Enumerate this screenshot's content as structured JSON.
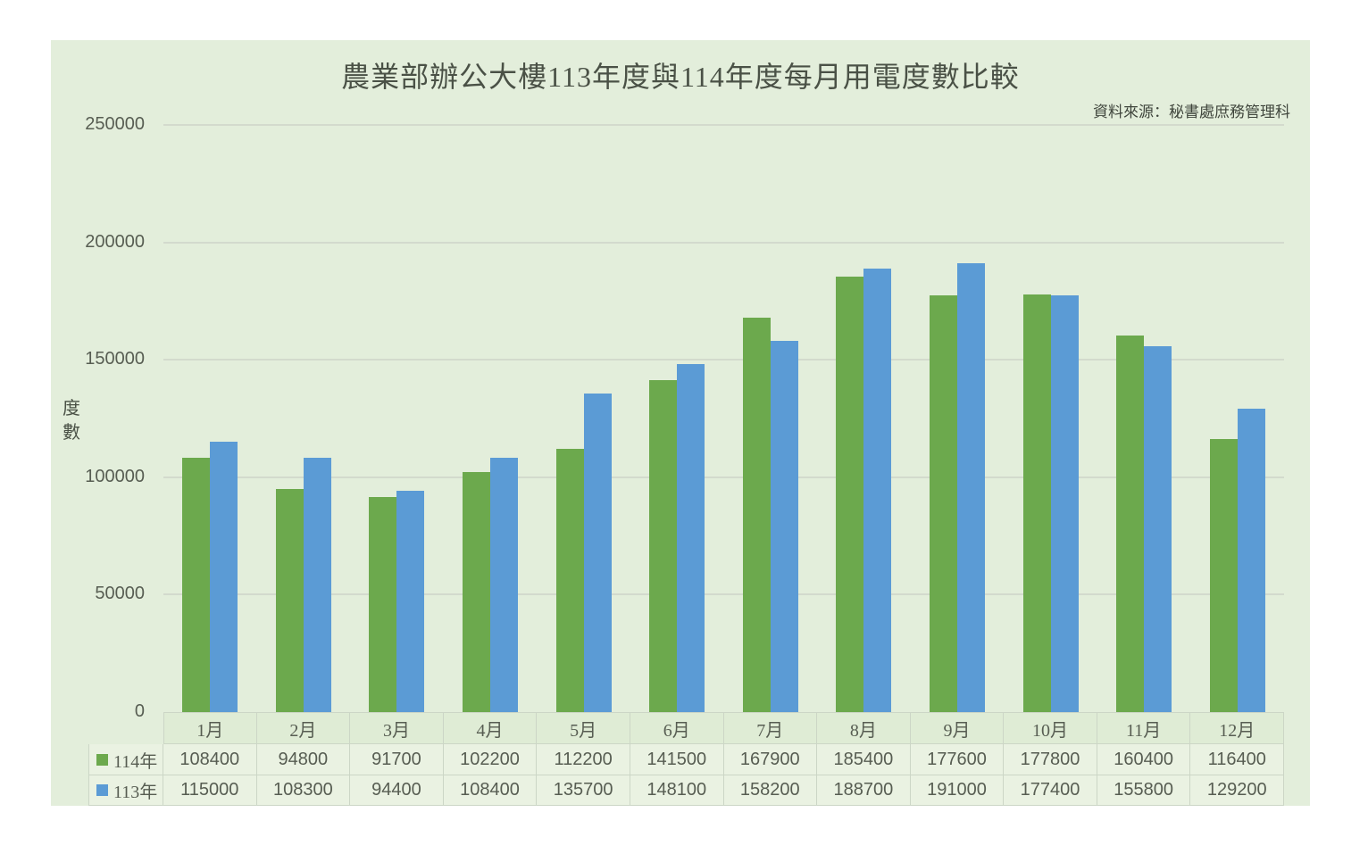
{
  "title": "農業部辦公大樓113年度與114年度每月用電度數比較",
  "source_note": "資料來源：秘書處庶務管理科",
  "y_axis_label": "度數",
  "colors": {
    "panel_background": "#e3eedb",
    "series_114": "#6ca94d",
    "series_113": "#5b9bd5",
    "gridline": "#d3dacd",
    "table_border": "#ccd6c6",
    "header_cell_bg": "#dfecd5",
    "value_cell_bg": "#eaf2e2",
    "text": "#575d52"
  },
  "chart_data": {
    "type": "bar",
    "title": "農業部辦公大樓113年度與114年度每月用電度數比較",
    "source": "資料來源：秘書處庶務管理科",
    "categories": [
      "1月",
      "2月",
      "3月",
      "4月",
      "5月",
      "6月",
      "7月",
      "8月",
      "9月",
      "10月",
      "11月",
      "12月"
    ],
    "series": [
      {
        "name": "114年",
        "color": "#6ca94d",
        "values": [
          108400,
          94800,
          91700,
          102200,
          112200,
          141500,
          167900,
          185400,
          177600,
          177800,
          160400,
          116400
        ]
      },
      {
        "name": "113年",
        "color": "#5b9bd5",
        "values": [
          115000,
          108300,
          94400,
          108400,
          135700,
          148100,
          158200,
          188700,
          191000,
          177400,
          155800,
          129200
        ]
      }
    ],
    "xlabel": "",
    "ylabel": "度數",
    "ylim": [
      0,
      250000
    ],
    "ytick_step": 50000,
    "grid": true,
    "legend_position": "table-rows-left",
    "data_table_shown": true
  }
}
